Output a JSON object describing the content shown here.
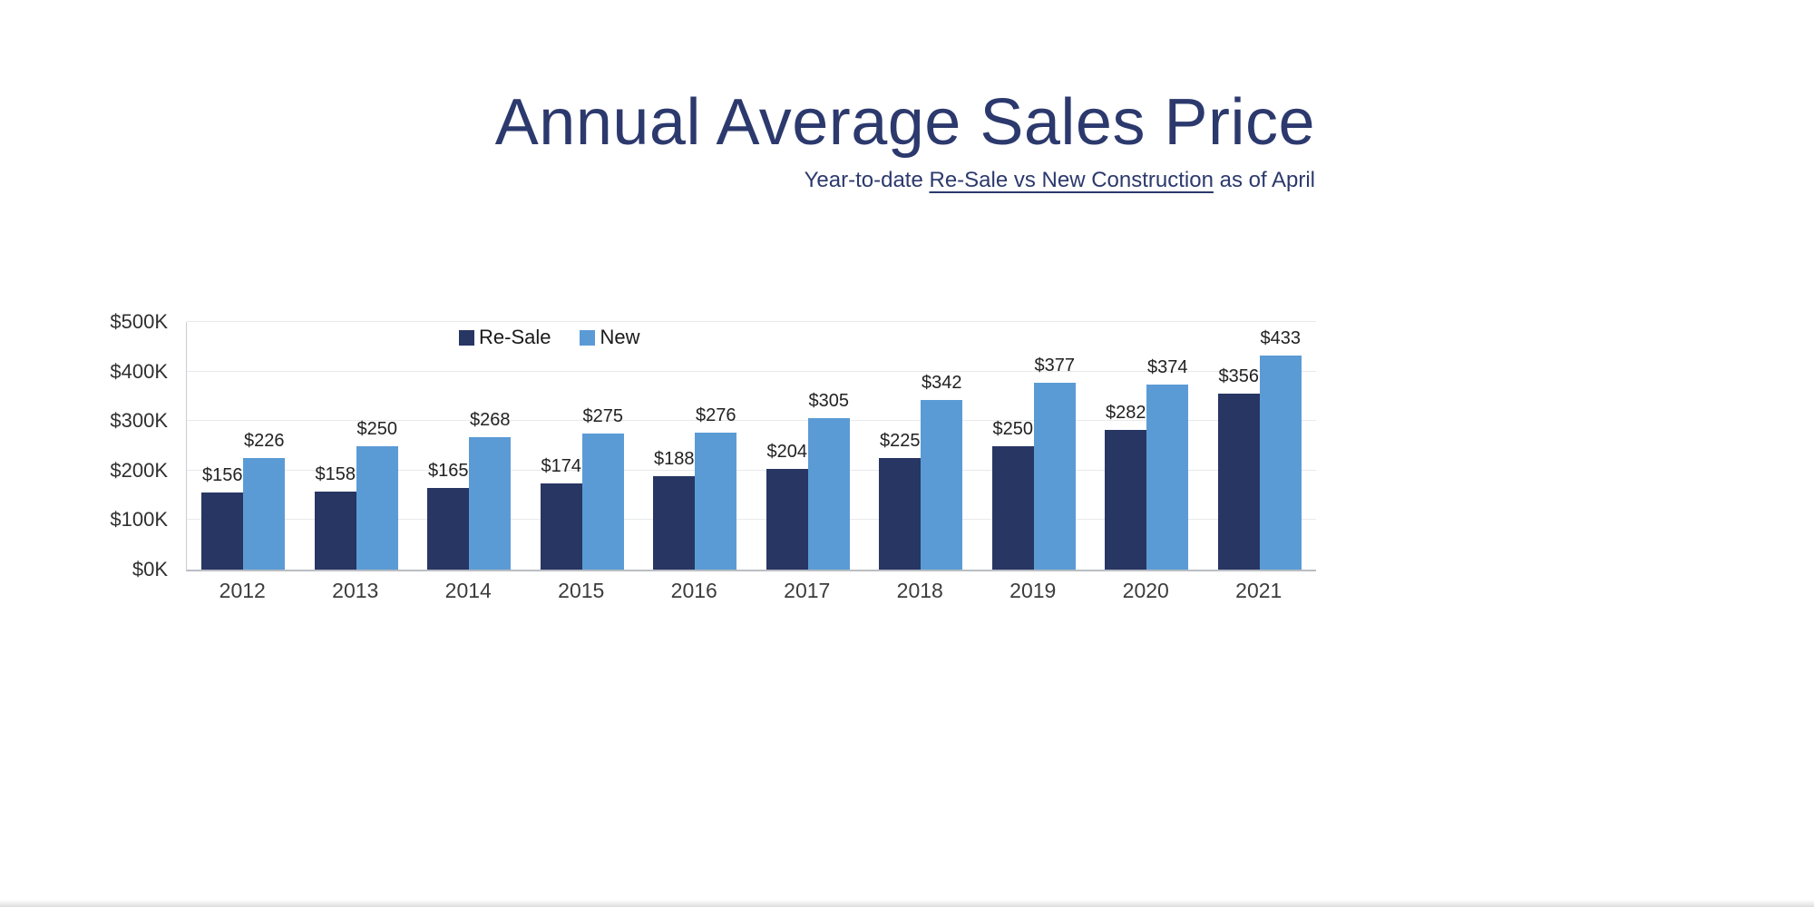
{
  "header": {
    "title": "Annual Average Sales Price",
    "subtitle": {
      "prefix": "Year-to-date ",
      "underlined": "Re-Sale vs New Construction",
      "suffix": " as of April"
    }
  },
  "colors": {
    "title_text": "#2c396d",
    "resale_bar": "#283663",
    "new_bar": "#5b9bd5",
    "axis_line": "#c9cdd2",
    "gridline": "#e7e9ec"
  },
  "chart_data": {
    "type": "bar",
    "title": "Annual Average Sales Price",
    "subtitle": "Year-to-date Re-Sale vs New Construction as of April",
    "categories": [
      "2012",
      "2013",
      "2014",
      "2015",
      "2016",
      "2017",
      "2018",
      "2019",
      "2020",
      "2021"
    ],
    "series": [
      {
        "name": "Re-Sale",
        "color": "#283663",
        "values": [
          156,
          158,
          165,
          174,
          188,
          204,
          225,
          250,
          282,
          356
        ]
      },
      {
        "name": "New",
        "color": "#5b9bd5",
        "values": [
          226,
          250,
          268,
          275,
          276,
          305,
          342,
          377,
          374,
          433
        ]
      }
    ],
    "value_prefix": "$",
    "values_scale": "thousands of dollars",
    "xlabel": "",
    "ylabel": "",
    "ylim": [
      0,
      500
    ],
    "ytick_labels": [
      "$0K",
      "$100K",
      "$200K",
      "$300K",
      "$400K",
      "$500K"
    ],
    "grid": true,
    "legend_position": "top-inside-left"
  }
}
